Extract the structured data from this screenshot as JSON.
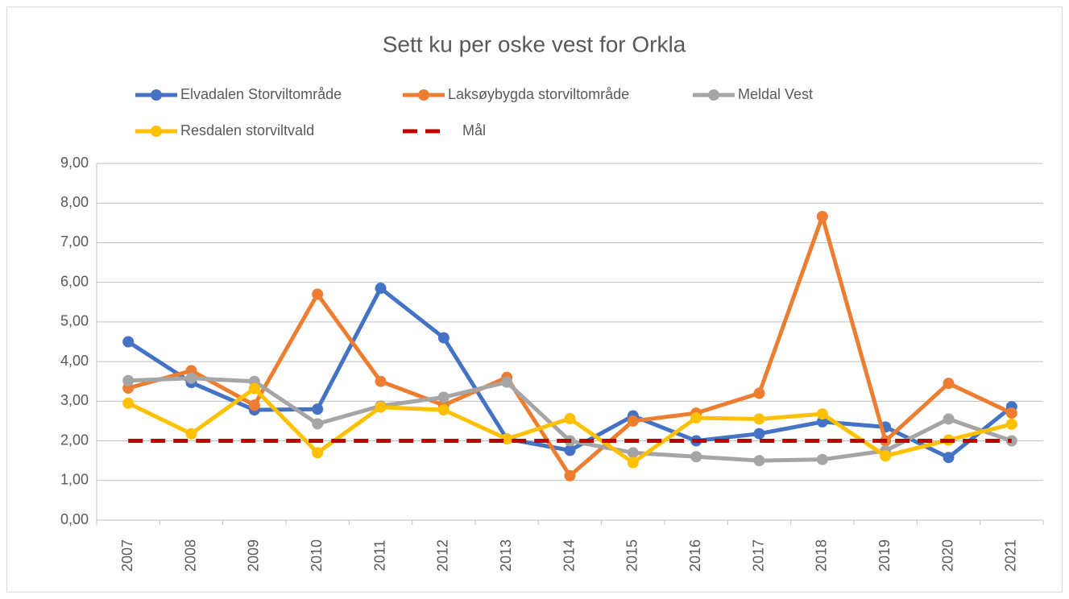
{
  "chart_data": {
    "type": "line",
    "title": "Sett ku per oske vest for Orkla",
    "categories": [
      "2007",
      "2008",
      "2009",
      "2010",
      "2011",
      "2012",
      "2013",
      "2014",
      "2015",
      "2016",
      "2017",
      "2018",
      "2019",
      "2020",
      "2021"
    ],
    "series": [
      {
        "name": "Elvadalen Storviltområde",
        "color": "#4472c4",
        "style": "solid",
        "marker": true,
        "values": [
          4.5,
          3.47,
          2.78,
          2.8,
          5.85,
          4.6,
          2.05,
          1.76,
          2.63,
          2.0,
          2.18,
          2.48,
          2.35,
          1.58,
          2.86
        ]
      },
      {
        "name": "Laksøybygda storviltområde",
        "color": "#ed7d31",
        "style": "solid",
        "marker": true,
        "values": [
          3.33,
          3.77,
          2.9,
          5.7,
          3.5,
          2.9,
          3.6,
          1.12,
          2.5,
          2.7,
          3.2,
          7.66,
          2.0,
          3.45,
          2.7
        ]
      },
      {
        "name": "Meldal Vest",
        "color": "#a5a5a5",
        "style": "solid",
        "marker": true,
        "values": [
          3.52,
          3.58,
          3.5,
          2.43,
          2.88,
          3.1,
          3.48,
          2.0,
          1.7,
          1.6,
          1.5,
          1.53,
          1.75,
          2.55,
          2.0
        ]
      },
      {
        "name": "Resdalen storviltvald",
        "color": "#ffc000",
        "style": "solid",
        "marker": true,
        "values": [
          2.95,
          2.18,
          3.32,
          1.7,
          2.85,
          2.78,
          2.05,
          2.56,
          1.45,
          2.58,
          2.55,
          2.68,
          1.62,
          2.02,
          2.42
        ]
      },
      {
        "name": "Mål",
        "color": "#c00000",
        "style": "dashed",
        "marker": false,
        "values": [
          2,
          2,
          2,
          2,
          2,
          2,
          2,
          2,
          2,
          2,
          2,
          2,
          2,
          2,
          2
        ]
      }
    ],
    "ylim": [
      0,
      9
    ],
    "yticks": [
      {
        "value": 0,
        "label": "0,00"
      },
      {
        "value": 1,
        "label": "1,00"
      },
      {
        "value": 2,
        "label": "2,00"
      },
      {
        "value": 3,
        "label": "3,00"
      },
      {
        "value": 4,
        "label": "4,00"
      },
      {
        "value": 5,
        "label": "5,00"
      },
      {
        "value": 6,
        "label": "6,00"
      },
      {
        "value": 7,
        "label": "7,00"
      },
      {
        "value": 8,
        "label": "8,00"
      },
      {
        "value": 9,
        "label": "9,00"
      }
    ],
    "grid": true,
    "legend": "top"
  }
}
